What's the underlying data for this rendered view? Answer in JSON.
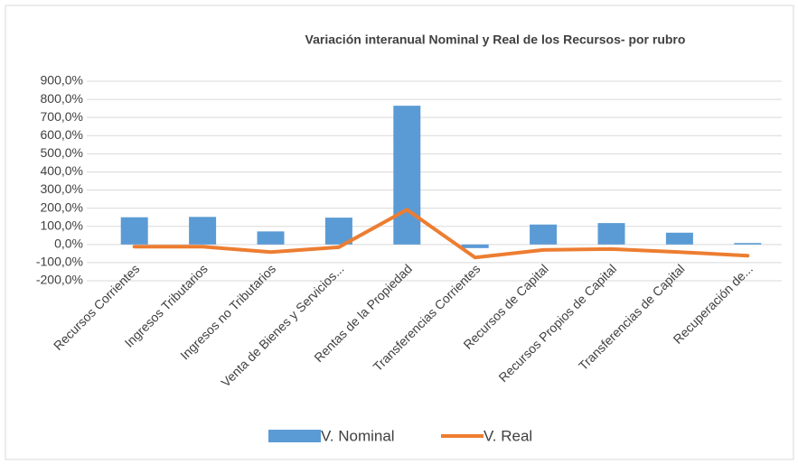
{
  "chart_data": {
    "type": "bar_line",
    "title": "Variación interanual Nominal  y Real  de los  Recursos- por rubro",
    "categories": [
      "Recursos Corrientes",
      "Ingresos Tributarios",
      "Ingresos no Tributarios",
      "Venta de Bienes y Servicios...",
      "Rentas de la Propiedad",
      "Transferencias Corrientes",
      "Recursos de Capital",
      "Recursos Propios de Capital",
      "Transferencias de Capital",
      "Recuperación de..."
    ],
    "series": [
      {
        "name": "V. Nominal",
        "type": "bar",
        "color": "#5b9bd5",
        "values": [
          150,
          152,
          72,
          148,
          765,
          -20,
          110,
          118,
          65,
          8
        ]
      },
      {
        "name": "V.  Real",
        "type": "line",
        "color": "#ed7d31",
        "values": [
          -12,
          -12,
          -42,
          -15,
          192,
          -72,
          -30,
          -25,
          -42,
          -62
        ]
      }
    ],
    "ylim": [
      -200,
      900
    ],
    "yticks": [
      {
        "value": -200,
        "label": "-200,0%"
      },
      {
        "value": -100,
        "label": "-100,0%"
      },
      {
        "value": 0,
        "label": "0,0%"
      },
      {
        "value": 100,
        "label": "100,0%"
      },
      {
        "value": 200,
        "label": "200,0%"
      },
      {
        "value": 300,
        "label": "300,0%"
      },
      {
        "value": 400,
        "label": "400,0%"
      },
      {
        "value": 500,
        "label": "500,0%"
      },
      {
        "value": 600,
        "label": "600,0%"
      },
      {
        "value": 700,
        "label": "700,0%"
      },
      {
        "value": 800,
        "label": "800,0%"
      },
      {
        "value": 900,
        "label": "900,0%"
      }
    ],
    "grid": true,
    "legend": "bottom"
  }
}
